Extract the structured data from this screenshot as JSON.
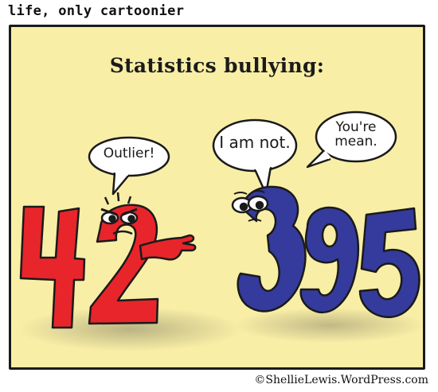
{
  "strip": {
    "title": "life, only cartoonier",
    "credit": "©ShellieLewis.WordPress.com"
  },
  "panel": {
    "heading": "Statistics bullying:",
    "background_color": "#f8eea6"
  },
  "characters": {
    "left": {
      "number": "42",
      "color": "#e8252b",
      "speech": "Outlier!"
    },
    "right": {
      "number": "395",
      "color": "#353b9c",
      "speech_1": "I am not.",
      "speech_2": "You're mean."
    }
  }
}
